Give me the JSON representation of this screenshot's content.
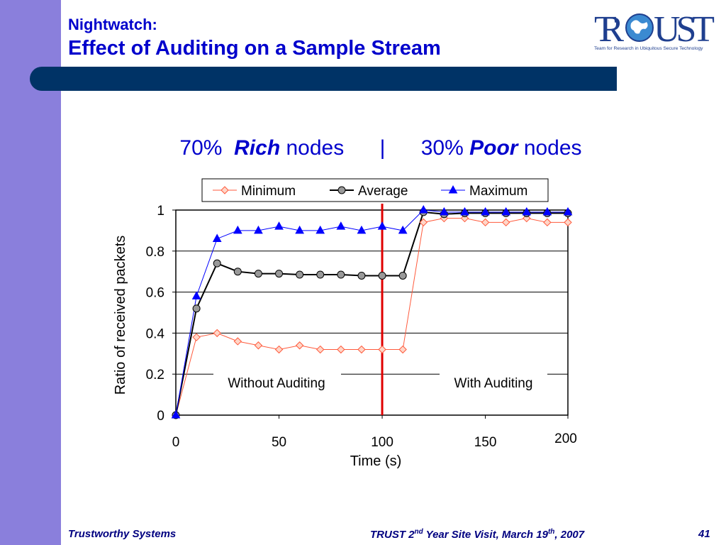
{
  "slide": {
    "title_small": "Nightwatch:",
    "title_main": "Effect of Auditing on a Sample Stream",
    "subtitle": {
      "rich_pct": "70%",
      "rich_word": "Rich",
      "nodes1": "nodes",
      "separator": "|",
      "poor_pct": "30%",
      "poor_word": "Poor",
      "nodes2": "nodes"
    },
    "footer": {
      "left": "Trustworthy Systems",
      "mid_a": "TRUST 2",
      "mid_sup1": "nd",
      "mid_b": " Year Site Visit, March 19",
      "mid_sup2": "th",
      "mid_c": ", 2007",
      "page": "41"
    },
    "logo": {
      "text": "TRUST",
      "tagline": "Team for Research in Ubiquitous Secure Technology",
      "icon": "globe-icon"
    }
  },
  "chart_data": {
    "type": "line",
    "xlabel": "Time (s)",
    "ylabel": "Ratio of received packets",
    "xlim": [
      0,
      190
    ],
    "ylim": [
      0,
      1
    ],
    "x_ticks": [
      "0",
      "50",
      "100",
      "150",
      "200"
    ],
    "y_ticks": [
      "0",
      "0.2",
      "0.4",
      "0.6",
      "0.8",
      "1"
    ],
    "x": [
      0,
      10,
      20,
      30,
      40,
      50,
      60,
      70,
      80,
      90,
      100,
      110,
      120,
      130,
      140,
      150,
      160,
      170,
      180,
      190
    ],
    "series": [
      {
        "name": "Minimum",
        "color": "#ff5a3c",
        "marker": "diamond",
        "values": [
          0,
          0.38,
          0.4,
          0.36,
          0.34,
          0.32,
          0.34,
          0.32,
          0.32,
          0.32,
          0.32,
          0.32,
          0.94,
          0.96,
          0.96,
          0.94,
          0.94,
          0.96,
          0.94,
          0.94
        ]
      },
      {
        "name": "Average",
        "color": "#000000",
        "marker": "circle",
        "values": [
          0,
          0.52,
          0.74,
          0.7,
          0.69,
          0.69,
          0.685,
          0.685,
          0.685,
          0.68,
          0.68,
          0.68,
          0.99,
          0.98,
          0.985,
          0.985,
          0.985,
          0.985,
          0.985,
          0.985
        ]
      },
      {
        "name": "Maximum",
        "color": "#0000ff",
        "marker": "triangle",
        "values": [
          0,
          0.58,
          0.86,
          0.9,
          0.9,
          0.92,
          0.9,
          0.9,
          0.92,
          0.9,
          0.92,
          0.9,
          1.0,
          0.99,
          0.99,
          0.99,
          0.99,
          0.99,
          0.99,
          0.99
        ]
      }
    ],
    "divider_x": 100,
    "divider_color": "#e00000",
    "regions": [
      {
        "label": "Without Auditing"
      },
      {
        "label": "With Auditing"
      }
    ],
    "legend_position": "top",
    "grid": true
  }
}
